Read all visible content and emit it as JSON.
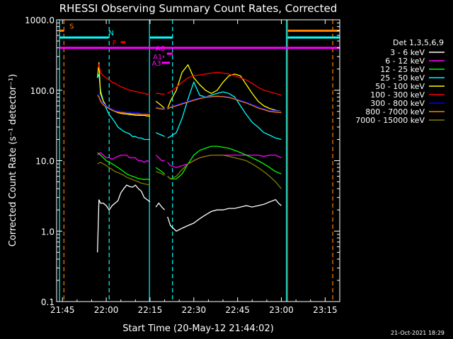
{
  "chart_data": {
    "type": "line",
    "title": "RHESSI Observing Summary Count Rates, Corrected",
    "xlabel": "Start Time (20-May-12 21:44:02)",
    "ylabel": "Corrected Count Rate (s⁻¹ detector⁻¹)",
    "y_scale": "log",
    "ylim": [
      0.1,
      1000
    ],
    "xlim_minutes": [
      -1,
      96
    ],
    "x_ticks": [
      {
        "m": 1,
        "label": "21:45"
      },
      {
        "m": 16,
        "label": "22:00"
      },
      {
        "m": 31,
        "label": "22:15"
      },
      {
        "m": 46,
        "label": "22:30"
      },
      {
        "m": 61,
        "label": "22:45"
      },
      {
        "m": 76,
        "label": "23:00"
      },
      {
        "m": 91,
        "label": "23:15"
      }
    ],
    "y_ticks": [
      {
        "v": 0.1,
        "label": "0.1"
      },
      {
        "v": 1,
        "label": "1.0"
      },
      {
        "v": 10,
        "label": "10.0"
      },
      {
        "v": 100,
        "label": "100.0"
      },
      {
        "v": 1000,
        "label": "1000.0"
      }
    ],
    "legend_title": "Det 1,3,5,6,9",
    "legend_position": "right",
    "date_stamp": "21-Oct-2021 18:29",
    "data_gaps_minutes": [
      [
        31,
        37
      ],
      [
        77,
        96
      ]
    ],
    "series": [
      {
        "name": "3 - 6 keV",
        "color": "#ffffff",
        "x": [
          13,
          13.5,
          14,
          15,
          16,
          17,
          18,
          19,
          20,
          21,
          22,
          23,
          24,
          25,
          26,
          27,
          28,
          29,
          30,
          31,
          33,
          34,
          35,
          36,
          37,
          38,
          40,
          42,
          44,
          46,
          48,
          50,
          52,
          54,
          56,
          58,
          60,
          62,
          64,
          66,
          68,
          70,
          72,
          74,
          75,
          76
        ],
        "y": [
          0.5,
          2.8,
          2.5,
          2.5,
          2.3,
          2.0,
          2.3,
          2.5,
          2.7,
          3.5,
          4.0,
          4.5,
          4.3,
          4.2,
          4.5,
          4.0,
          3.7,
          3.0,
          2.8,
          2.6,
          2.2,
          2.5,
          2.2,
          2.0,
          1.6,
          1.2,
          1.0,
          1.1,
          1.2,
          1.3,
          1.5,
          1.7,
          1.9,
          2.0,
          2.0,
          2.1,
          2.1,
          2.2,
          2.3,
          2.2,
          2.3,
          2.4,
          2.6,
          2.8,
          2.5,
          2.3
        ]
      },
      {
        "name": "6 - 12 keV",
        "color": "#ff00ff",
        "x": [
          13,
          14,
          15,
          16,
          17,
          18,
          19,
          20,
          21,
          22,
          23,
          24,
          25,
          26,
          27,
          28,
          29,
          30,
          31,
          33,
          34,
          35,
          36,
          37,
          38,
          40,
          42,
          44,
          46,
          48,
          50,
          52,
          54,
          56,
          58,
          60,
          62,
          64,
          66,
          68,
          70,
          72,
          74,
          76
        ],
        "y": [
          12,
          13,
          12,
          11,
          11,
          10.5,
          11,
          11.5,
          12,
          12,
          12,
          11,
          11,
          11,
          10,
          10,
          9.5,
          10,
          9.5,
          12,
          11,
          10,
          10,
          9.5,
          8.5,
          8,
          8.5,
          9,
          10,
          11,
          11.5,
          12,
          12,
          12,
          12,
          12,
          12,
          12,
          12,
          12,
          11.5,
          12,
          12,
          11
        ]
      },
      {
        "name": "12 - 25 keV",
        "color": "#00ff00",
        "x": [
          13,
          14,
          15,
          16,
          17,
          18,
          19,
          20,
          21,
          22,
          23,
          24,
          25,
          26,
          27,
          28,
          29,
          30,
          31,
          33,
          34,
          35,
          36,
          37,
          38,
          40,
          42,
          44,
          46,
          48,
          50,
          52,
          54,
          56,
          58,
          60,
          62,
          64,
          66,
          68,
          70,
          72,
          74,
          76
        ],
        "y": [
          13,
          12,
          11,
          10,
          9.5,
          9,
          8.5,
          8,
          7.5,
          7,
          6.5,
          6.2,
          6,
          5.8,
          5.6,
          5.5,
          5.4,
          5.5,
          5.3,
          8,
          7.5,
          7,
          6.5,
          6,
          5.5,
          5.5,
          6.5,
          9,
          12,
          14,
          15,
          16,
          16,
          15.5,
          15,
          14,
          13,
          12,
          11,
          10,
          9,
          8,
          7,
          6.5
        ]
      },
      {
        "name": "25 - 50 keV",
        "color": "#00ffff",
        "x": [
          13,
          13.5,
          14,
          15,
          16,
          17,
          18,
          19,
          20,
          21,
          22,
          23,
          24,
          25,
          26,
          27,
          28,
          29,
          30,
          31,
          33,
          34,
          35,
          36,
          37,
          38,
          40,
          42,
          44,
          46,
          48,
          50,
          52,
          54,
          56,
          58,
          60,
          62,
          64,
          66,
          68,
          70,
          72,
          74,
          76
        ],
        "y": [
          150,
          170,
          100,
          70,
          55,
          45,
          40,
          35,
          30,
          28,
          26,
          25,
          24,
          22,
          22,
          21,
          21,
          20,
          20,
          20,
          25,
          24,
          23,
          22,
          21,
          22,
          25,
          40,
          75,
          130,
          85,
          80,
          85,
          90,
          95,
          90,
          80,
          60,
          45,
          35,
          30,
          25,
          23,
          21,
          20
        ]
      },
      {
        "name": "50 - 100 keV",
        "color": "#ffff00",
        "x": [
          13,
          13.5,
          14,
          15,
          16,
          17,
          18,
          19,
          20,
          21,
          22,
          23,
          24,
          25,
          26,
          27,
          28,
          29,
          30,
          31,
          33,
          34,
          35,
          36,
          37,
          38,
          40,
          42,
          44,
          46,
          48,
          50,
          52,
          54,
          56,
          58,
          60,
          62,
          64,
          66,
          68,
          70,
          72,
          74,
          76
        ],
        "y": [
          150,
          250,
          90,
          70,
          60,
          55,
          52,
          50,
          48,
          47,
          46,
          46,
          45,
          45,
          44,
          44,
          44,
          44,
          43,
          43,
          70,
          65,
          60,
          55,
          55,
          70,
          100,
          180,
          230,
          150,
          120,
          100,
          90,
          100,
          130,
          160,
          170,
          160,
          120,
          90,
          70,
          60,
          55,
          52,
          50
        ]
      },
      {
        "name": "100 - 300 keV",
        "color": "#ff0000",
        "x": [
          13,
          13.5,
          14,
          15,
          16,
          17,
          18,
          19,
          20,
          21,
          22,
          23,
          24,
          25,
          26,
          27,
          28,
          29,
          30,
          31,
          33,
          34,
          35,
          36,
          37,
          38,
          40,
          42,
          44,
          46,
          48,
          50,
          52,
          54,
          56,
          58,
          60,
          62,
          64,
          66,
          68,
          70,
          72,
          74,
          76
        ],
        "y": [
          200,
          230,
          180,
          160,
          150,
          140,
          130,
          125,
          118,
          112,
          108,
          104,
          100,
          98,
          96,
          94,
          92,
          90,
          88,
          88,
          90,
          90,
          88,
          88,
          90,
          95,
          110,
          130,
          150,
          160,
          165,
          170,
          175,
          180,
          175,
          170,
          160,
          150,
          140,
          125,
          110,
          100,
          95,
          90,
          85
        ]
      },
      {
        "name": "300 - 800 keV",
        "color": "#0000ff",
        "x": [
          13,
          13.5,
          14,
          15,
          16,
          17,
          18,
          19,
          20,
          21,
          22,
          23,
          24,
          25,
          26,
          27,
          28,
          29,
          30,
          31,
          33,
          34,
          35,
          36,
          37,
          38,
          40,
          42,
          44,
          46,
          48,
          50,
          52,
          54,
          56,
          58,
          60,
          62,
          64,
          66,
          68,
          70,
          72,
          74,
          76
        ],
        "y": [
          90,
          85,
          75,
          65,
          60,
          57,
          54,
          52,
          51,
          50,
          50,
          49,
          49,
          48,
          48,
          48,
          47,
          47,
          47,
          47,
          58,
          57,
          56,
          55,
          55,
          58,
          62,
          66,
          70,
          74,
          78,
          80,
          82,
          83,
          82,
          80,
          76,
          72,
          68,
          63,
          58,
          55,
          52,
          51,
          50
        ]
      },
      {
        "name": "800 - 7000 keV",
        "color": "#ff8000",
        "x": [
          13,
          13.5,
          14,
          15,
          16,
          17,
          18,
          19,
          20,
          21,
          22,
          23,
          24,
          25,
          26,
          27,
          28,
          29,
          30,
          31,
          33,
          34,
          35,
          36,
          37,
          38,
          40,
          42,
          44,
          46,
          48,
          50,
          52,
          54,
          56,
          58,
          60,
          62,
          64,
          66,
          68,
          70,
          72,
          74,
          76
        ],
        "y": [
          85,
          80,
          70,
          62,
          58,
          55,
          52,
          50,
          49,
          48,
          48,
          47,
          47,
          46,
          46,
          46,
          45,
          45,
          45,
          45,
          56,
          55,
          54,
          54,
          54,
          57,
          60,
          64,
          68,
          72,
          76,
          79,
          81,
          82,
          81,
          79,
          75,
          70,
          66,
          61,
          56,
          53,
          50,
          49,
          48
        ]
      },
      {
        "name": "7000 - 15000 keV",
        "color": "#808000",
        "x": [
          13,
          14,
          15,
          16,
          17,
          18,
          19,
          20,
          21,
          22,
          23,
          24,
          25,
          26,
          27,
          28,
          29,
          30,
          31,
          33,
          34,
          35,
          36,
          37,
          38,
          40,
          42,
          44,
          46,
          48,
          50,
          52,
          54,
          56,
          58,
          60,
          62,
          64,
          66,
          68,
          70,
          72,
          74,
          76
        ],
        "y": [
          9,
          9.5,
          9,
          8.5,
          8,
          7.5,
          7,
          6.8,
          6.5,
          6.2,
          5.8,
          5.6,
          5.4,
          5.2,
          5,
          4.8,
          4.7,
          4.6,
          4.5,
          7,
          6.8,
          6.5,
          6.2,
          6,
          5.5,
          6,
          7.5,
          9,
          10,
          11,
          11.5,
          12,
          12,
          12,
          11.5,
          11,
          10.5,
          10,
          9,
          8,
          7,
          6,
          5,
          4
        ]
      }
    ],
    "vertical_markers": [
      {
        "m": 0.0,
        "color": "#00ffff",
        "style": "solid"
      },
      {
        "m": 1.5,
        "color": "#ff8000",
        "style": "dashed"
      },
      {
        "m": 17.0,
        "color": "#00ffff",
        "style": "dashed"
      },
      {
        "m": 30.8,
        "color": "#00ffff",
        "style": "solid"
      },
      {
        "m": 38.7,
        "color": "#00ffff",
        "style": "dashed"
      },
      {
        "m": 77.7,
        "color": "#00ffff",
        "style": "solid"
      },
      {
        "m": 78.1,
        "color": "#ff8000",
        "style": "solid"
      },
      {
        "m": 93.6,
        "color": "#ff8000",
        "style": "dashed"
      }
    ],
    "flag_bars": [
      {
        "label": "S",
        "color": "#ff8000",
        "x": [
          0,
          1.5
        ],
        "y": 700
      },
      {
        "label": "",
        "color": "#ff8000",
        "x": [
          78,
          96
        ],
        "y": 700
      },
      {
        "label": "N",
        "color": "#00ffff",
        "x": [
          0,
          16.8
        ],
        "y": 560
      },
      {
        "label": "",
        "color": "#00ffff",
        "x": [
          31,
          38.8
        ],
        "y": 560
      },
      {
        "label": "",
        "color": "#00ffff",
        "x": [
          78,
          96
        ],
        "y": 560
      },
      {
        "label": "F",
        "color": "#ff0000",
        "x": [
          21.0,
          22.6
        ],
        "y": 480
      },
      {
        "label": "",
        "color": "#ff00ff",
        "x": [
          0,
          96
        ],
        "y": 400
      },
      {
        "label": "A0",
        "color": "#ff00ff",
        "x": [
          36.8,
          38.8
        ],
        "y": 330
      },
      {
        "label": "A1",
        "color": "#ff00ff",
        "x": [
          35.4,
          35.8
        ],
        "y": 300
      },
      {
        "label": "A3",
        "color": "#ff00ff",
        "x": [
          35.0,
          37.8
        ],
        "y": 245
      }
    ]
  }
}
